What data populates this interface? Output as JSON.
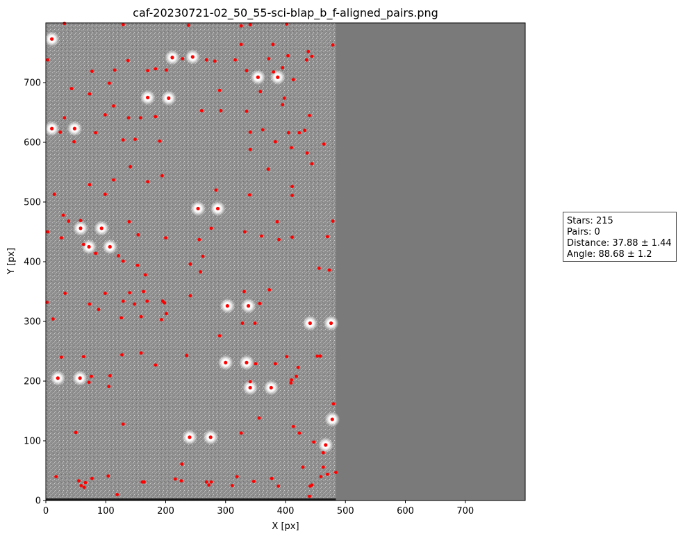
{
  "chart_data": {
    "type": "scatter",
    "title": "caf-20230721-02_50_55-sci-blap_b_f-aligned_pairs.png",
    "xlabel": "X [px]",
    "ylabel": "Y [px]",
    "xlim": [
      0,
      800
    ],
    "ylim": [
      0,
      800
    ],
    "xticks": [
      0,
      100,
      200,
      300,
      400,
      500,
      600,
      700
    ],
    "yticks": [
      0,
      100,
      200,
      300,
      400,
      500,
      600,
      700
    ],
    "image_extent_x": [
      0,
      484
    ],
    "marker_color": "#ff0000",
    "bright_stars": [
      {
        "x": 10,
        "y": 773
      },
      {
        "x": 211,
        "y": 742
      },
      {
        "x": 245,
        "y": 743
      },
      {
        "x": 354,
        "y": 709
      },
      {
        "x": 387,
        "y": 709
      },
      {
        "x": 170,
        "y": 675
      },
      {
        "x": 205,
        "y": 674
      },
      {
        "x": 10,
        "y": 623
      },
      {
        "x": 48,
        "y": 623
      },
      {
        "x": 254,
        "y": 489
      },
      {
        "x": 287,
        "y": 489
      },
      {
        "x": 58,
        "y": 456
      },
      {
        "x": 93,
        "y": 456
      },
      {
        "x": 72,
        "y": 425
      },
      {
        "x": 107,
        "y": 425
      },
      {
        "x": 303,
        "y": 326
      },
      {
        "x": 338,
        "y": 326
      },
      {
        "x": 441,
        "y": 297
      },
      {
        "x": 476,
        "y": 297
      },
      {
        "x": 300,
        "y": 231
      },
      {
        "x": 335,
        "y": 231
      },
      {
        "x": 57,
        "y": 205
      },
      {
        "x": 20,
        "y": 205
      },
      {
        "x": 341,
        "y": 189
      },
      {
        "x": 376,
        "y": 189
      },
      {
        "x": 240,
        "y": 106
      },
      {
        "x": 275,
        "y": 106
      },
      {
        "x": 478,
        "y": 136
      },
      {
        "x": 467,
        "y": 93
      }
    ],
    "points": [
      [
        31,
        799
      ],
      [
        129,
        797
      ],
      [
        238,
        796
      ],
      [
        326,
        795
      ],
      [
        341,
        797
      ],
      [
        402,
        798
      ],
      [
        479,
        763
      ],
      [
        3,
        738
      ],
      [
        137,
        737
      ],
      [
        183,
        723
      ],
      [
        228,
        740
      ],
      [
        268,
        738
      ],
      [
        282,
        736
      ],
      [
        316,
        738
      ],
      [
        379,
        764
      ],
      [
        438,
        752
      ],
      [
        326,
        764
      ],
      [
        435,
        738
      ],
      [
        77,
        719
      ],
      [
        115,
        721
      ],
      [
        170,
        720
      ],
      [
        201,
        721
      ],
      [
        335,
        720
      ],
      [
        372,
        740
      ],
      [
        404,
        745
      ],
      [
        413,
        705
      ],
      [
        395,
        725
      ],
      [
        380,
        718
      ],
      [
        444,
        744
      ],
      [
        43,
        690
      ],
      [
        73,
        681
      ],
      [
        106,
        699
      ],
      [
        290,
        687
      ],
      [
        358,
        685
      ],
      [
        395,
        663
      ],
      [
        398,
        674
      ],
      [
        113,
        661
      ],
      [
        99,
        646
      ],
      [
        138,
        641
      ],
      [
        158,
        641
      ],
      [
        183,
        643
      ],
      [
        260,
        653
      ],
      [
        292,
        653
      ],
      [
        335,
        652
      ],
      [
        440,
        645
      ],
      [
        31,
        641
      ],
      [
        24,
        617
      ],
      [
        47,
        601
      ],
      [
        83,
        616
      ],
      [
        129,
        604
      ],
      [
        149,
        605
      ],
      [
        190,
        602
      ],
      [
        341,
        617
      ],
      [
        362,
        621
      ],
      [
        383,
        601
      ],
      [
        405,
        616
      ],
      [
        423,
        616
      ],
      [
        432,
        620
      ],
      [
        410,
        591
      ],
      [
        341,
        588
      ],
      [
        436,
        582
      ],
      [
        464,
        597
      ],
      [
        444,
        564
      ],
      [
        371,
        555
      ],
      [
        141,
        559
      ],
      [
        14,
        513
      ],
      [
        73,
        529
      ],
      [
        99,
        513
      ],
      [
        113,
        537
      ],
      [
        170,
        534
      ],
      [
        194,
        544
      ],
      [
        284,
        520
      ],
      [
        340,
        512
      ],
      [
        411,
        526
      ],
      [
        411,
        511
      ],
      [
        29,
        478
      ],
      [
        38,
        468
      ],
      [
        58,
        469
      ],
      [
        139,
        467
      ],
      [
        276,
        456
      ],
      [
        332,
        450
      ],
      [
        386,
        467
      ],
      [
        479,
        468
      ],
      [
        470,
        442
      ],
      [
        3,
        450
      ],
      [
        26,
        440
      ],
      [
        63,
        429
      ],
      [
        83,
        414
      ],
      [
        154,
        445
      ],
      [
        200,
        440
      ],
      [
        256,
        437
      ],
      [
        360,
        443
      ],
      [
        389,
        437
      ],
      [
        411,
        441
      ],
      [
        121,
        410
      ],
      [
        129,
        401
      ],
      [
        153,
        394
      ],
      [
        166,
        378
      ],
      [
        241,
        396
      ],
      [
        262,
        409
      ],
      [
        258,
        383
      ],
      [
        456,
        389
      ],
      [
        473,
        386
      ],
      [
        2,
        332
      ],
      [
        12,
        304
      ],
      [
        32,
        347
      ],
      [
        73,
        329
      ],
      [
        88,
        320
      ],
      [
        99,
        347
      ],
      [
        129,
        334
      ],
      [
        126,
        306
      ],
      [
        140,
        348
      ],
      [
        148,
        329
      ],
      [
        159,
        308
      ],
      [
        163,
        350
      ],
      [
        169,
        334
      ],
      [
        195,
        334
      ],
      [
        198,
        331
      ],
      [
        193,
        303
      ],
      [
        201,
        313
      ],
      [
        241,
        343
      ],
      [
        290,
        276
      ],
      [
        331,
        350
      ],
      [
        328,
        297
      ],
      [
        349,
        297
      ],
      [
        357,
        330
      ],
      [
        373,
        353
      ],
      [
        402,
        241
      ],
      [
        421,
        223
      ],
      [
        418,
        208
      ],
      [
        410,
        202
      ],
      [
        409,
        197
      ],
      [
        26,
        240
      ],
      [
        63,
        241
      ],
      [
        127,
        244
      ],
      [
        159,
        247
      ],
      [
        183,
        227
      ],
      [
        235,
        243
      ],
      [
        350,
        229
      ],
      [
        383,
        229
      ],
      [
        453,
        242
      ],
      [
        458,
        242
      ],
      [
        72,
        198
      ],
      [
        76,
        208
      ],
      [
        105,
        191
      ],
      [
        107,
        209
      ],
      [
        341,
        199
      ],
      [
        129,
        128
      ],
      [
        356,
        138
      ],
      [
        413,
        124
      ],
      [
        423,
        113
      ],
      [
        326,
        113
      ],
      [
        50,
        114
      ],
      [
        447,
        98
      ],
      [
        463,
        80
      ],
      [
        17,
        40
      ],
      [
        55,
        33
      ],
      [
        59,
        25
      ],
      [
        64,
        22
      ],
      [
        66,
        30
      ],
      [
        77,
        37
      ],
      [
        104,
        41
      ],
      [
        119,
        10
      ],
      [
        161,
        31
      ],
      [
        164,
        31
      ],
      [
        216,
        36
      ],
      [
        226,
        33
      ],
      [
        227,
        61
      ],
      [
        268,
        31
      ],
      [
        272,
        26
      ],
      [
        276,
        31
      ],
      [
        311,
        25
      ],
      [
        319,
        40
      ],
      [
        347,
        32
      ],
      [
        377,
        37
      ],
      [
        388,
        24
      ],
      [
        429,
        56
      ],
      [
        441,
        24
      ],
      [
        444,
        26
      ],
      [
        459,
        40
      ],
      [
        463,
        56
      ],
      [
        470,
        44
      ],
      [
        484,
        47
      ],
      [
        480,
        162
      ],
      [
        440,
        7
      ]
    ]
  },
  "info_box": {
    "stars": "Stars: 215",
    "pairs": "Pairs: 0",
    "distance": "Distance: 37.88 ± 1.44",
    "angle": "Angle: 88.68 ± 1.2"
  }
}
